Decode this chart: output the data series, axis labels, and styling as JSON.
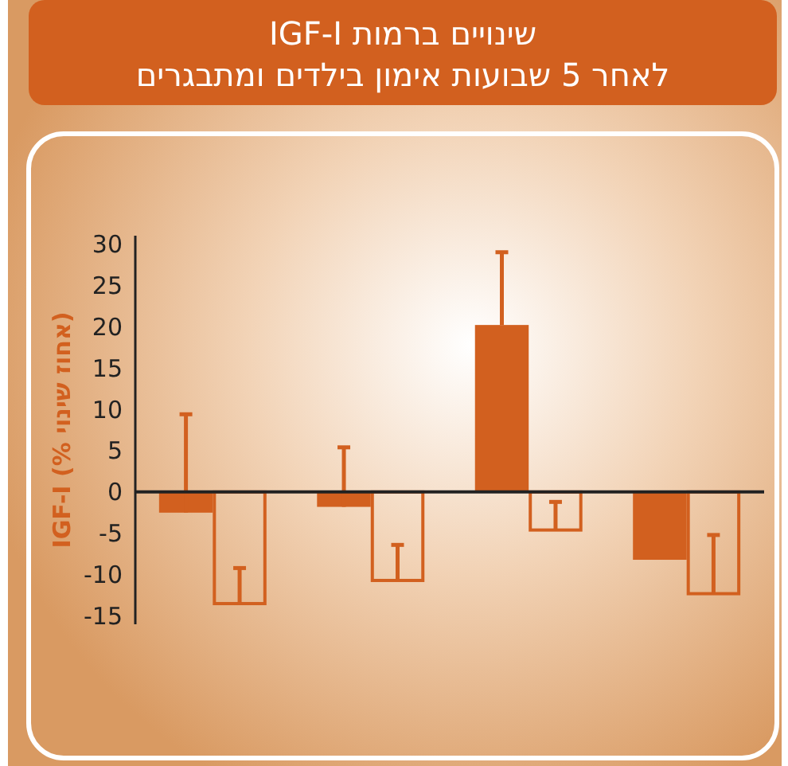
{
  "chart_data": {
    "type": "bar",
    "title": "שינויים ברמות IGF-I\nלאחר 5 שבועות אימון בילדים ומתבגרים",
    "ylabel": "IGF-I (% אחוז שינוי)",
    "categories": [
      null,
      null,
      null,
      null
    ],
    "series": [
      {
        "color": "#d2601f",
        "values": [
          -2.5,
          -1.8,
          20.2,
          -8.2
        ],
        "errors": [
          [
            -2.5,
            9.4
          ],
          [
            -1.8,
            5.4
          ],
          [
            20.2,
            29
          ],
          null
        ]
      },
      {
        "color": "#d2601f",
        "values": [
          -13.5,
          -10.7,
          -4.6,
          -12.3
        ],
        "errors": [
          [
            -13.5,
            -9.2
          ],
          [
            -10.7,
            -6.4
          ],
          [
            -4.6,
            -1.2
          ],
          [
            -12.3,
            -5.2
          ]
        ]
      }
    ],
    "ylim": [
      -16,
      31
    ],
    "yticks": [
      -15,
      -10,
      -5,
      0,
      5,
      10,
      15,
      20,
      25,
      30
    ]
  }
}
